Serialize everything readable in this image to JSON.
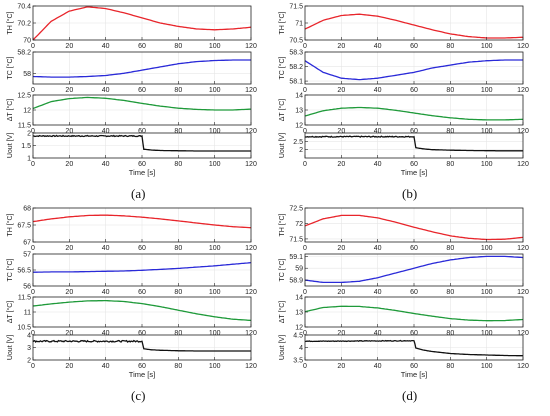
{
  "panel_labels": [
    "(a)",
    "(b)",
    "(c)",
    "(d)"
  ],
  "colors": {
    "TH": "#e8252b",
    "TC": "#2a2ad8",
    "dT": "#1f9a3a",
    "Uout": "#111111"
  },
  "chart_data": [
    {
      "type": "line",
      "panel": "(a)",
      "xlabel": "Time [s]",
      "xlim": [
        0,
        120
      ],
      "xticks": [
        0,
        20,
        40,
        60,
        80,
        100,
        120
      ],
      "subplots": [
        {
          "ylabel": "TH [°C]",
          "ylim": [
            70,
            70.4
          ],
          "yticks": [
            "70",
            "70.2",
            "70.4"
          ],
          "color": "#e8252b",
          "x": [
            0,
            10,
            20,
            30,
            40,
            50,
            60,
            70,
            80,
            90,
            100,
            110,
            120
          ],
          "y": [
            70.0,
            70.22,
            70.34,
            70.39,
            70.37,
            70.32,
            70.26,
            70.2,
            70.16,
            70.13,
            70.12,
            70.13,
            70.15
          ]
        },
        {
          "ylabel": "TC [°C]",
          "ylim": [
            57.9,
            58.2
          ],
          "yticks": [
            "58",
            "58.2"
          ],
          "color": "#2a2ad8",
          "x": [
            0,
            10,
            20,
            30,
            40,
            50,
            60,
            70,
            80,
            90,
            100,
            110,
            120
          ],
          "y": [
            57.97,
            57.965,
            57.965,
            57.97,
            57.98,
            58.0,
            58.03,
            58.06,
            58.09,
            58.11,
            58.12,
            58.125,
            58.125
          ]
        },
        {
          "ylabel": "ΔT [°C]",
          "ylim": [
            11.5,
            12.5
          ],
          "yticks": [
            "11.5",
            "12",
            "12.5"
          ],
          "color": "#1f9a3a",
          "x": [
            0,
            10,
            20,
            30,
            40,
            50,
            60,
            70,
            80,
            90,
            100,
            110,
            120
          ],
          "y": [
            12.05,
            12.28,
            12.38,
            12.42,
            12.39,
            12.32,
            12.22,
            12.13,
            12.06,
            12.02,
            12.0,
            12.0,
            12.03
          ]
        },
        {
          "ylabel": "Uout [V]",
          "ylim": [
            1,
            2
          ],
          "yticks": [
            "1",
            "1.5",
            "2"
          ],
          "color": "#111111",
          "noise": 0.04,
          "x": [
            0,
            60,
            60.5,
            61,
            65,
            70,
            80,
            90,
            100,
            110,
            120
          ],
          "y": [
            1.88,
            1.88,
            1.6,
            1.35,
            1.32,
            1.3,
            1.29,
            1.28,
            1.28,
            1.28,
            1.28
          ]
        }
      ]
    },
    {
      "type": "line",
      "panel": "(b)",
      "xlabel": "Time [s]",
      "xlim": [
        0,
        120
      ],
      "xticks": [
        0,
        20,
        40,
        60,
        80,
        100,
        120
      ],
      "subplots": [
        {
          "ylabel": "TH [°C]",
          "ylim": [
            70.5,
            71.5
          ],
          "yticks": [
            "70.5",
            "71",
            "71.5"
          ],
          "color": "#e8252b",
          "x": [
            0,
            10,
            20,
            30,
            40,
            50,
            60,
            70,
            80,
            90,
            100,
            110,
            120
          ],
          "y": [
            70.82,
            71.08,
            71.22,
            71.26,
            71.2,
            71.08,
            70.94,
            70.8,
            70.68,
            70.6,
            70.56,
            70.56,
            70.58
          ]
        },
        {
          "ylabel": "TC [°C]",
          "ylim": [
            58.08,
            58.3
          ],
          "yticks": [
            "58.1",
            "58.2",
            "58.3"
          ],
          "color": "#2a2ad8",
          "x": [
            0,
            10,
            20,
            30,
            40,
            50,
            60,
            70,
            80,
            90,
            100,
            110,
            120
          ],
          "y": [
            58.24,
            58.16,
            58.12,
            58.11,
            58.12,
            58.14,
            58.16,
            58.19,
            58.21,
            58.23,
            58.24,
            58.245,
            58.245
          ]
        },
        {
          "ylabel": "ΔT [°C]",
          "ylim": [
            12,
            14
          ],
          "yticks": [
            "12",
            "13",
            "14"
          ],
          "color": "#1f9a3a",
          "x": [
            0,
            10,
            20,
            30,
            40,
            50,
            60,
            70,
            80,
            90,
            100,
            110,
            120
          ],
          "y": [
            12.6,
            12.95,
            13.12,
            13.17,
            13.12,
            12.98,
            12.8,
            12.62,
            12.48,
            12.38,
            12.34,
            12.34,
            12.38
          ]
        },
        {
          "ylabel": "Uout [V]",
          "ylim": [
            1.5,
            3
          ],
          "yticks": [
            "2",
            "2.5"
          ],
          "color": "#111111",
          "noise": 0.04,
          "x": [
            0,
            60,
            60.5,
            61,
            65,
            70,
            80,
            90,
            100,
            110,
            120
          ],
          "y": [
            2.78,
            2.78,
            2.45,
            2.12,
            2.05,
            2.0,
            1.97,
            1.95,
            1.94,
            1.93,
            1.93
          ]
        }
      ]
    },
    {
      "type": "line",
      "panel": "(c)",
      "xlabel": "Time [s]",
      "xlim": [
        0,
        120
      ],
      "xticks": [
        0,
        20,
        40,
        60,
        80,
        100,
        120
      ],
      "subplots": [
        {
          "ylabel": "TH [°C]",
          "ylim": [
            67,
            68
          ],
          "yticks": [
            "67",
            "67.5",
            "68"
          ],
          "color": "#e8252b",
          "x": [
            0,
            10,
            20,
            30,
            40,
            50,
            60,
            70,
            80,
            90,
            100,
            110,
            120
          ],
          "y": [
            67.6,
            67.68,
            67.74,
            67.78,
            67.79,
            67.77,
            67.73,
            67.68,
            67.62,
            67.56,
            67.5,
            67.45,
            67.42
          ]
        },
        {
          "ylabel": "TC [°C]",
          "ylim": [
            56,
            57
          ],
          "yticks": [
            "56",
            "56.5",
            "57"
          ],
          "color": "#2a2ad8",
          "x": [
            0,
            10,
            20,
            30,
            40,
            50,
            60,
            70,
            80,
            90,
            100,
            110,
            120
          ],
          "y": [
            56.43,
            56.44,
            56.44,
            56.45,
            56.46,
            56.47,
            56.49,
            56.52,
            56.55,
            56.59,
            56.63,
            56.68,
            56.73
          ]
        },
        {
          "ylabel": "ΔT [°C]",
          "ylim": [
            10.5,
            11.5
          ],
          "yticks": [
            "10.5",
            "11",
            "11.5"
          ],
          "color": "#1f9a3a",
          "x": [
            0,
            10,
            20,
            30,
            40,
            50,
            60,
            70,
            80,
            90,
            100,
            110,
            120
          ],
          "y": [
            11.2,
            11.27,
            11.33,
            11.37,
            11.38,
            11.35,
            11.28,
            11.18,
            11.06,
            10.94,
            10.84,
            10.76,
            10.72
          ]
        },
        {
          "ylabel": "Uout [V]",
          "ylim": [
            2,
            4
          ],
          "yticks": [
            "2",
            "3",
            "4"
          ],
          "color": "#111111",
          "noise": 0.06,
          "x": [
            0,
            60,
            60.5,
            61,
            65,
            70,
            80,
            90,
            100,
            110,
            120
          ],
          "y": [
            3.5,
            3.5,
            3.2,
            2.9,
            2.82,
            2.78,
            2.74,
            2.72,
            2.72,
            2.72,
            2.72
          ]
        }
      ]
    },
    {
      "type": "line",
      "panel": "(d)",
      "xlabel": "Time [s]",
      "xlim": [
        0,
        120
      ],
      "xticks": [
        0,
        20,
        40,
        60,
        80,
        100,
        120
      ],
      "subplots": [
        {
          "ylabel": "TH [°C]",
          "ylim": [
            71.4,
            72.5
          ],
          "yticks": [
            "71.5",
            "72",
            "72.5"
          ],
          "color": "#e8252b",
          "x": [
            0,
            10,
            20,
            30,
            40,
            50,
            60,
            70,
            80,
            90,
            100,
            110,
            120
          ],
          "y": [
            71.92,
            72.15,
            72.26,
            72.26,
            72.18,
            72.04,
            71.88,
            71.73,
            71.6,
            71.52,
            71.48,
            71.49,
            71.55
          ]
        },
        {
          "ylabel": "TC [°C]",
          "ylim": [
            58.85,
            59.12
          ],
          "yticks": [
            "58.9",
            "59",
            "59.1"
          ],
          "color": "#2a2ad8",
          "x": [
            0,
            10,
            20,
            30,
            40,
            50,
            60,
            70,
            80,
            90,
            100,
            110,
            120
          ],
          "y": [
            58.9,
            58.88,
            58.88,
            58.89,
            58.92,
            58.96,
            59.0,
            59.04,
            59.07,
            59.09,
            59.1,
            59.1,
            59.09
          ]
        },
        {
          "ylabel": "ΔT [°C]",
          "ylim": [
            12,
            14
          ],
          "yticks": [
            "12",
            "13",
            "14"
          ],
          "color": "#1f9a3a",
          "x": [
            0,
            10,
            20,
            30,
            40,
            50,
            60,
            70,
            80,
            90,
            100,
            110,
            120
          ],
          "y": [
            13.02,
            13.3,
            13.38,
            13.37,
            13.27,
            13.1,
            12.9,
            12.72,
            12.56,
            12.46,
            12.42,
            12.43,
            12.5
          ]
        },
        {
          "ylabel": "Uout [V]",
          "ylim": [
            3.5,
            4.5
          ],
          "yticks": [
            "3.5",
            "4",
            "4.5"
          ],
          "color": "#111111",
          "noise": 0.025,
          "x": [
            0,
            60,
            60.5,
            61,
            65,
            70,
            80,
            90,
            100,
            110,
            120
          ],
          "y": [
            4.25,
            4.27,
            4.15,
            3.98,
            3.9,
            3.84,
            3.76,
            3.72,
            3.7,
            3.68,
            3.67
          ]
        }
      ]
    }
  ]
}
